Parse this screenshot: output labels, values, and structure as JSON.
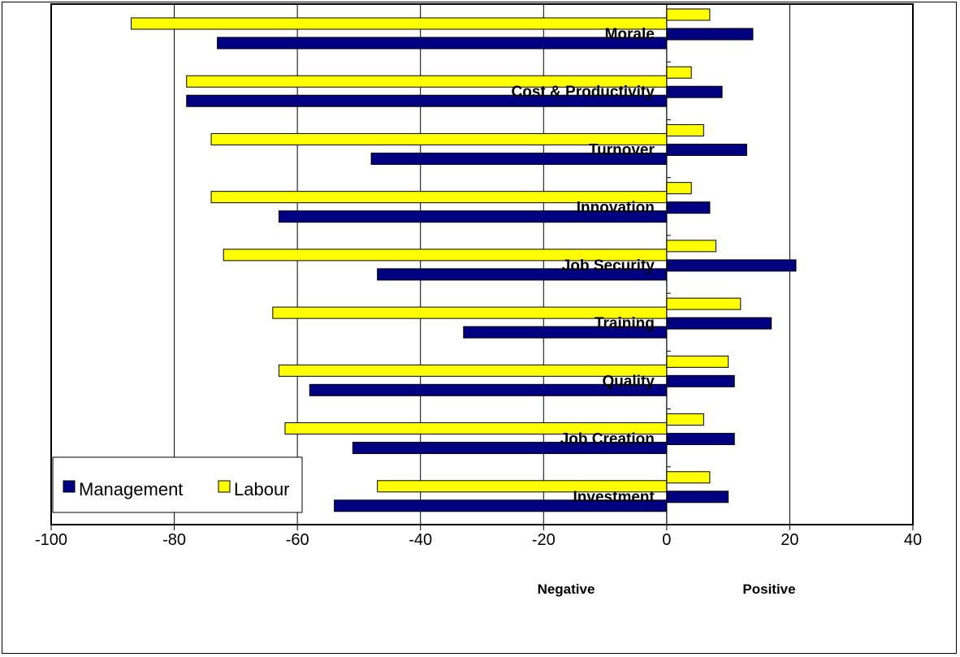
{
  "chart_data": {
    "type": "bar",
    "orientation": "horizontal",
    "categories": [
      "Morale",
      "Cost & Productivity",
      "Turnover",
      "Innovation",
      "Job Security",
      "Training",
      "Quality",
      "Job Creation",
      "Investment"
    ],
    "series": [
      {
        "name": "Labour",
        "color": "#FFFF00",
        "values": [
          -87,
          -78,
          -74,
          -74,
          -72,
          -64,
          -63,
          -62,
          -47
        ],
        "positive": [
          7,
          4,
          6,
          4,
          8,
          12,
          10,
          6,
          7
        ]
      },
      {
        "name": "Management",
        "color": "#000080",
        "values": [
          -73,
          -78,
          -48,
          -63,
          -47,
          -33,
          -58,
          -51,
          -54
        ],
        "positive": [
          14,
          9,
          13,
          7,
          21,
          17,
          11,
          11,
          10
        ]
      }
    ],
    "xlim": [
      -100,
      40
    ],
    "xticks": [
      -100,
      -80,
      -60,
      -40,
      -20,
      0,
      20,
      40
    ],
    "xlabel_negative": "Negative",
    "xlabel_positive": "Positive",
    "grid": "vertical",
    "legend": {
      "placement": "bottom-left",
      "entries": [
        "Management",
        "Labour"
      ]
    }
  }
}
